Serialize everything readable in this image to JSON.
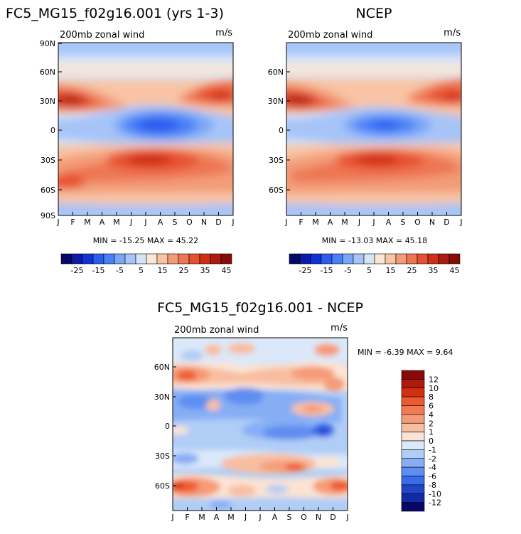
{
  "chart_data": [
    {
      "type": "heatmap",
      "title": "FC5_MG15_f02g16.001 (yrs 1-3)",
      "subtitle_left": "200mb zonal wind",
      "subtitle_right": "m/s",
      "x_ticks": [
        "J",
        "F",
        "M",
        "A",
        "M",
        "J",
        "J",
        "A",
        "S",
        "O",
        "N",
        "D",
        "J"
      ],
      "y_ticks": [
        "90N",
        "60N",
        "30N",
        "0",
        "30S",
        "60S",
        "90S"
      ],
      "stats": "MIN = -15.25 MAX = 45.22",
      "min": -15.25,
      "max": 45.22,
      "colorbar_labels": [
        "-25",
        "-15",
        "-5",
        "5",
        "15",
        "25",
        "35",
        "45"
      ]
    },
    {
      "type": "heatmap",
      "title": "NCEP",
      "subtitle_left": "200mb zonal wind",
      "subtitle_right": "m/s",
      "x_ticks": [
        "J",
        "F",
        "M",
        "A",
        "M",
        "J",
        "J",
        "A",
        "S",
        "O",
        "N",
        "D",
        "J"
      ],
      "y_ticks": [
        "60N",
        "30N",
        "0",
        "30S",
        "60S"
      ],
      "stats": "MIN = -13.03 MAX = 45.18",
      "min": -13.03,
      "max": 45.18,
      "colorbar_labels": [
        "-25",
        "-15",
        "-5",
        "5",
        "15",
        "25",
        "35",
        "45"
      ]
    },
    {
      "type": "heatmap",
      "title": "FC5_MG15_f02g16.001 - NCEP",
      "subtitle_left": "200mb zonal wind",
      "subtitle_right": "m/s",
      "x_ticks": [
        "J",
        "F",
        "M",
        "A",
        "M",
        "J",
        "J",
        "A",
        "S",
        "O",
        "N",
        "D",
        "J"
      ],
      "y_ticks": [
        "60N",
        "30N",
        "0",
        "30S",
        "60S"
      ],
      "stats": "MIN = -6.39 MAX = 9.64",
      "min": -6.39,
      "max": 9.64,
      "colorbar_labels": [
        "12",
        "10",
        "8",
        "6",
        "4",
        "2",
        "1",
        "0",
        "-1",
        "-2",
        "-4",
        "-6",
        "-8",
        "-10",
        "-12"
      ]
    }
  ],
  "colors": {
    "full_scale": [
      "#08086b",
      "#0d1aa8",
      "#1133d6",
      "#2b5df0",
      "#4a80f5",
      "#7aa6f7",
      "#a6c4f8",
      "#d6e4f8",
      "#fbe6d6",
      "#f8c4a4",
      "#f39c78",
      "#ee7652",
      "#e6512f",
      "#cf2e17",
      "#ad1a0e",
      "#8a0a08"
    ],
    "diff_scale": [
      "#8a0a08",
      "#ad1a0e",
      "#d3300f",
      "#ee5a2e",
      "#f27a52",
      "#f59b77",
      "#f8bea0",
      "#fbe3d4",
      "#dbe8f9",
      "#b0cdf6",
      "#86aef5",
      "#5e8ef1",
      "#3a6be8",
      "#2144c9",
      "#122aa3",
      "#08086b"
    ]
  }
}
